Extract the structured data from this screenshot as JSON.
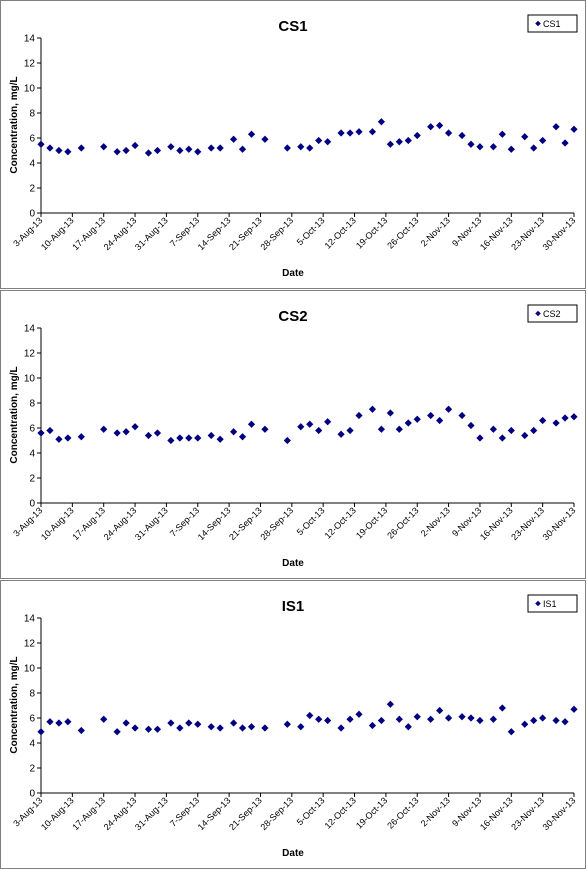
{
  "chart_data": [
    {
      "type": "scatter",
      "title": "CS1",
      "xlabel": "Date",
      "ylabel": "Concentration, mg/L",
      "legend": "top-right",
      "legend_label": "CS1",
      "grid": false,
      "ylim": [
        0,
        14
      ],
      "yticks": [
        0,
        2,
        4,
        6,
        8,
        10,
        12,
        14
      ],
      "xlim": [
        "2013-08-03",
        "2013-11-30"
      ],
      "xticks": [
        "3-Aug-13",
        "10-Aug-13",
        "17-Aug-13",
        "24-Aug-13",
        "31-Aug-13",
        "7-Sep-13",
        "14-Sep-13",
        "21-Sep-13",
        "28-Sep-13",
        "5-Oct-13",
        "12-Oct-13",
        "19-Oct-13",
        "26-Oct-13",
        "2-Nov-13",
        "9-Nov-13",
        "16-Nov-13",
        "23-Nov-13",
        "30-Nov-13"
      ],
      "color": "#000080",
      "points": [
        {
          "x": "2013-08-03",
          "y": 5.5
        },
        {
          "x": "2013-08-05",
          "y": 5.2
        },
        {
          "x": "2013-08-07",
          "y": 5.0
        },
        {
          "x": "2013-08-09",
          "y": 4.9
        },
        {
          "x": "2013-08-12",
          "y": 5.2
        },
        {
          "x": "2013-08-17",
          "y": 5.3
        },
        {
          "x": "2013-08-20",
          "y": 4.9
        },
        {
          "x": "2013-08-22",
          "y": 5.0
        },
        {
          "x": "2013-08-24",
          "y": 5.4
        },
        {
          "x": "2013-08-27",
          "y": 4.8
        },
        {
          "x": "2013-08-29",
          "y": 5.0
        },
        {
          "x": "2013-09-01",
          "y": 5.3
        },
        {
          "x": "2013-09-03",
          "y": 5.0
        },
        {
          "x": "2013-09-05",
          "y": 5.1
        },
        {
          "x": "2013-09-07",
          "y": 4.9
        },
        {
          "x": "2013-09-10",
          "y": 5.2
        },
        {
          "x": "2013-09-12",
          "y": 5.2
        },
        {
          "x": "2013-09-15",
          "y": 5.9
        },
        {
          "x": "2013-09-17",
          "y": 5.1
        },
        {
          "x": "2013-09-19",
          "y": 6.3
        },
        {
          "x": "2013-09-22",
          "y": 5.9
        },
        {
          "x": "2013-09-27",
          "y": 5.2
        },
        {
          "x": "2013-09-30",
          "y": 5.3
        },
        {
          "x": "2013-10-02",
          "y": 5.2
        },
        {
          "x": "2013-10-04",
          "y": 5.8
        },
        {
          "x": "2013-10-06",
          "y": 5.7
        },
        {
          "x": "2013-10-09",
          "y": 6.4
        },
        {
          "x": "2013-10-11",
          "y": 6.4
        },
        {
          "x": "2013-10-13",
          "y": 6.5
        },
        {
          "x": "2013-10-16",
          "y": 6.5
        },
        {
          "x": "2013-10-18",
          "y": 7.3
        },
        {
          "x": "2013-10-20",
          "y": 5.5
        },
        {
          "x": "2013-10-22",
          "y": 5.7
        },
        {
          "x": "2013-10-24",
          "y": 5.8
        },
        {
          "x": "2013-10-26",
          "y": 6.2
        },
        {
          "x": "2013-10-29",
          "y": 6.9
        },
        {
          "x": "2013-10-31",
          "y": 7.0
        },
        {
          "x": "2013-11-02",
          "y": 6.4
        },
        {
          "x": "2013-11-05",
          "y": 6.2
        },
        {
          "x": "2013-11-07",
          "y": 5.5
        },
        {
          "x": "2013-11-09",
          "y": 5.3
        },
        {
          "x": "2013-11-12",
          "y": 5.3
        },
        {
          "x": "2013-11-14",
          "y": 6.3
        },
        {
          "x": "2013-11-16",
          "y": 5.1
        },
        {
          "x": "2013-11-19",
          "y": 6.1
        },
        {
          "x": "2013-11-21",
          "y": 5.2
        },
        {
          "x": "2013-11-23",
          "y": 5.8
        },
        {
          "x": "2013-11-26",
          "y": 6.9
        },
        {
          "x": "2013-11-28",
          "y": 5.6
        },
        {
          "x": "2013-11-30",
          "y": 6.7
        }
      ]
    },
    {
      "type": "scatter",
      "title": "CS2",
      "xlabel": "Date",
      "ylabel": "Concentration, mg/L",
      "legend": "top-right",
      "legend_label": "CS2",
      "grid": false,
      "ylim": [
        0,
        14
      ],
      "yticks": [
        0,
        2,
        4,
        6,
        8,
        10,
        12,
        14
      ],
      "xlim": [
        "2013-08-03",
        "2013-11-30"
      ],
      "xticks": [
        "3-Aug-13",
        "10-Aug-13",
        "17-Aug-13",
        "24-Aug-13",
        "31-Aug-13",
        "7-Sep-13",
        "14-Sep-13",
        "21-Sep-13",
        "28-Sep-13",
        "5-Oct-13",
        "12-Oct-13",
        "19-Oct-13",
        "26-Oct-13",
        "2-Nov-13",
        "9-Nov-13",
        "16-Nov-13",
        "23-Nov-13",
        "30-Nov-13"
      ],
      "color": "#000080",
      "points": [
        {
          "x": "2013-08-03",
          "y": 5.6
        },
        {
          "x": "2013-08-05",
          "y": 5.8
        },
        {
          "x": "2013-08-07",
          "y": 5.1
        },
        {
          "x": "2013-08-09",
          "y": 5.2
        },
        {
          "x": "2013-08-12",
          "y": 5.3
        },
        {
          "x": "2013-08-17",
          "y": 5.9
        },
        {
          "x": "2013-08-20",
          "y": 5.6
        },
        {
          "x": "2013-08-22",
          "y": 5.7
        },
        {
          "x": "2013-08-24",
          "y": 6.1
        },
        {
          "x": "2013-08-27",
          "y": 5.4
        },
        {
          "x": "2013-08-29",
          "y": 5.6
        },
        {
          "x": "2013-09-01",
          "y": 5.0
        },
        {
          "x": "2013-09-03",
          "y": 5.2
        },
        {
          "x": "2013-09-05",
          "y": 5.2
        },
        {
          "x": "2013-09-07",
          "y": 5.2
        },
        {
          "x": "2013-09-10",
          "y": 5.4
        },
        {
          "x": "2013-09-12",
          "y": 5.1
        },
        {
          "x": "2013-09-15",
          "y": 5.7
        },
        {
          "x": "2013-09-17",
          "y": 5.3
        },
        {
          "x": "2013-09-19",
          "y": 6.3
        },
        {
          "x": "2013-09-22",
          "y": 5.9
        },
        {
          "x": "2013-09-27",
          "y": 5.0
        },
        {
          "x": "2013-09-30",
          "y": 6.1
        },
        {
          "x": "2013-10-02",
          "y": 6.3
        },
        {
          "x": "2013-10-04",
          "y": 5.8
        },
        {
          "x": "2013-10-06",
          "y": 6.5
        },
        {
          "x": "2013-10-09",
          "y": 5.5
        },
        {
          "x": "2013-10-11",
          "y": 5.8
        },
        {
          "x": "2013-10-13",
          "y": 7.0
        },
        {
          "x": "2013-10-16",
          "y": 7.5
        },
        {
          "x": "2013-10-18",
          "y": 5.9
        },
        {
          "x": "2013-10-20",
          "y": 7.2
        },
        {
          "x": "2013-10-22",
          "y": 5.9
        },
        {
          "x": "2013-10-24",
          "y": 6.4
        },
        {
          "x": "2013-10-26",
          "y": 6.7
        },
        {
          "x": "2013-10-29",
          "y": 7.0
        },
        {
          "x": "2013-10-31",
          "y": 6.6
        },
        {
          "x": "2013-11-02",
          "y": 7.5
        },
        {
          "x": "2013-11-05",
          "y": 7.0
        },
        {
          "x": "2013-11-07",
          "y": 6.2
        },
        {
          "x": "2013-11-09",
          "y": 5.2
        },
        {
          "x": "2013-11-12",
          "y": 5.9
        },
        {
          "x": "2013-11-14",
          "y": 5.2
        },
        {
          "x": "2013-11-16",
          "y": 5.8
        },
        {
          "x": "2013-11-19",
          "y": 5.4
        },
        {
          "x": "2013-11-21",
          "y": 5.8
        },
        {
          "x": "2013-11-23",
          "y": 6.6
        },
        {
          "x": "2013-11-26",
          "y": 6.4
        },
        {
          "x": "2013-11-28",
          "y": 6.8
        },
        {
          "x": "2013-11-30",
          "y": 6.9
        }
      ]
    },
    {
      "type": "scatter",
      "title": "IS1",
      "xlabel": "Date",
      "ylabel": "Concentration, mg/L",
      "legend": "top-right",
      "legend_label": "IS1",
      "grid": false,
      "ylim": [
        0,
        14
      ],
      "yticks": [
        0,
        2,
        4,
        6,
        8,
        10,
        12,
        14
      ],
      "xlim": [
        "2013-08-03",
        "2013-11-30"
      ],
      "xticks": [
        "3-Aug-13",
        "10-Aug-13",
        "17-Aug-13",
        "24-Aug-13",
        "31-Aug-13",
        "7-Sep-13",
        "14-Sep-13",
        "21-Sep-13",
        "28-Sep-13",
        "5-Oct-13",
        "12-Oct-13",
        "19-Oct-13",
        "26-Oct-13",
        "2-Nov-13",
        "9-Nov-13",
        "16-Nov-13",
        "23-Nov-13",
        "30-Nov-13"
      ],
      "color": "#000080",
      "points": [
        {
          "x": "2013-08-03",
          "y": 4.9
        },
        {
          "x": "2013-08-05",
          "y": 5.7
        },
        {
          "x": "2013-08-07",
          "y": 5.6
        },
        {
          "x": "2013-08-09",
          "y": 5.7
        },
        {
          "x": "2013-08-12",
          "y": 5.0
        },
        {
          "x": "2013-08-17",
          "y": 5.9
        },
        {
          "x": "2013-08-20",
          "y": 4.9
        },
        {
          "x": "2013-08-22",
          "y": 5.6
        },
        {
          "x": "2013-08-24",
          "y": 5.2
        },
        {
          "x": "2013-08-27",
          "y": 5.1
        },
        {
          "x": "2013-08-29",
          "y": 5.1
        },
        {
          "x": "2013-09-01",
          "y": 5.6
        },
        {
          "x": "2013-09-03",
          "y": 5.2
        },
        {
          "x": "2013-09-05",
          "y": 5.6
        },
        {
          "x": "2013-09-07",
          "y": 5.5
        },
        {
          "x": "2013-09-10",
          "y": 5.3
        },
        {
          "x": "2013-09-12",
          "y": 5.2
        },
        {
          "x": "2013-09-15",
          "y": 5.6
        },
        {
          "x": "2013-09-17",
          "y": 5.2
        },
        {
          "x": "2013-09-19",
          "y": 5.3
        },
        {
          "x": "2013-09-22",
          "y": 5.2
        },
        {
          "x": "2013-09-27",
          "y": 5.5
        },
        {
          "x": "2013-09-30",
          "y": 5.3
        },
        {
          "x": "2013-10-02",
          "y": 6.2
        },
        {
          "x": "2013-10-04",
          "y": 5.9
        },
        {
          "x": "2013-10-06",
          "y": 5.8
        },
        {
          "x": "2013-10-09",
          "y": 5.2
        },
        {
          "x": "2013-10-11",
          "y": 5.9
        },
        {
          "x": "2013-10-13",
          "y": 6.3
        },
        {
          "x": "2013-10-16",
          "y": 5.4
        },
        {
          "x": "2013-10-18",
          "y": 5.8
        },
        {
          "x": "2013-10-20",
          "y": 7.1
        },
        {
          "x": "2013-10-22",
          "y": 5.9
        },
        {
          "x": "2013-10-24",
          "y": 5.3
        },
        {
          "x": "2013-10-26",
          "y": 6.1
        },
        {
          "x": "2013-10-29",
          "y": 5.9
        },
        {
          "x": "2013-10-31",
          "y": 6.6
        },
        {
          "x": "2013-11-02",
          "y": 6.0
        },
        {
          "x": "2013-11-05",
          "y": 6.1
        },
        {
          "x": "2013-11-07",
          "y": 6.0
        },
        {
          "x": "2013-11-09",
          "y": 5.8
        },
        {
          "x": "2013-11-12",
          "y": 5.9
        },
        {
          "x": "2013-11-14",
          "y": 6.8
        },
        {
          "x": "2013-11-16",
          "y": 4.9
        },
        {
          "x": "2013-11-19",
          "y": 5.5
        },
        {
          "x": "2013-11-21",
          "y": 5.8
        },
        {
          "x": "2013-11-23",
          "y": 6.0
        },
        {
          "x": "2013-11-26",
          "y": 5.8
        },
        {
          "x": "2013-11-28",
          "y": 5.7
        },
        {
          "x": "2013-11-30",
          "y": 6.7
        }
      ]
    }
  ]
}
